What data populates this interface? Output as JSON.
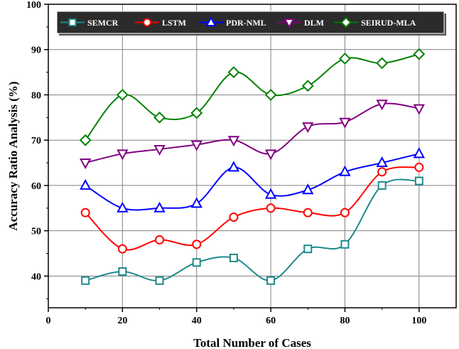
{
  "chart_data": {
    "type": "line",
    "xlabel": "Total Number of Cases",
    "ylabel": "Accuracy Ratio Analysis (%)",
    "xlim": [
      0,
      110
    ],
    "ylim": [
      33,
      100
    ],
    "x_ticks": [
      0,
      20,
      40,
      60,
      80,
      100
    ],
    "y_ticks": [
      40,
      50,
      60,
      70,
      80,
      90,
      100
    ],
    "grid": true,
    "legend_position": "top",
    "x": [
      10,
      20,
      30,
      40,
      50,
      60,
      70,
      80,
      90,
      100
    ],
    "series": [
      {
        "name": "SEMCR",
        "color": "#1f8a8a",
        "marker": "square",
        "values": [
          39,
          41,
          39,
          43,
          44,
          39,
          46,
          47,
          60,
          61
        ]
      },
      {
        "name": "LSTM",
        "color": "#ff0000",
        "marker": "circle",
        "values": [
          54,
          46,
          48,
          47,
          53,
          55,
          54,
          54,
          63,
          64
        ]
      },
      {
        "name": "PDR-NML",
        "color": "#0000ff",
        "marker": "triangle-up",
        "values": [
          60,
          55,
          55,
          56,
          64,
          58,
          59,
          63,
          65,
          67
        ]
      },
      {
        "name": "DLM",
        "color": "#800080",
        "marker": "triangle-down",
        "values": [
          65,
          67,
          68,
          69,
          70,
          67,
          73,
          74,
          78,
          77
        ]
      },
      {
        "name": "SEIRUD-MLA",
        "color": "#008000",
        "marker": "diamond",
        "values": [
          70,
          80,
          75,
          76,
          85,
          80,
          82,
          88,
          87,
          89
        ]
      }
    ]
  }
}
